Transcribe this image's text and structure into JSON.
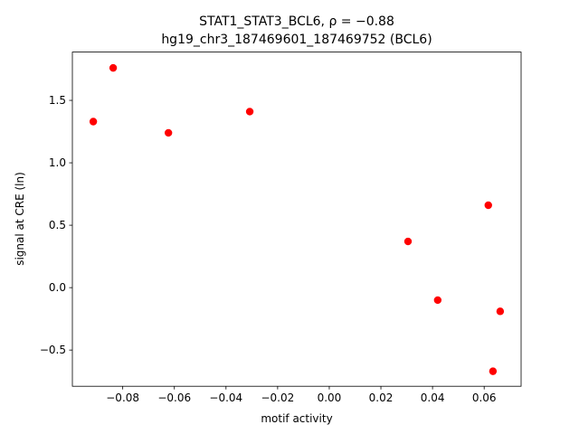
{
  "chart_data": {
    "type": "scatter",
    "title": "STAT1_STAT3_BCL6, ρ = −0.88",
    "subtitle": "hg19_chr3_187469601_187469752 (BCL6)",
    "x_label": "motif activity",
    "y_label": "signal at CRE (ln)",
    "color": "#ff0000",
    "x": [
      -0.0837,
      -0.0914,
      -0.0623,
      -0.0308,
      0.0305,
      0.0616,
      0.042,
      0.0662,
      0.0634
    ],
    "values": [
      1.76,
      1.33,
      1.24,
      1.41,
      0.37,
      0.66,
      -0.1,
      -0.19,
      -0.67
    ],
    "xlim": [
      -0.0995,
      0.0743
    ],
    "ylim": [
      -0.79,
      1.887
    ],
    "xticks": [
      {
        "value": -0.08,
        "label": "−0.08"
      },
      {
        "value": -0.06,
        "label": "−0.06"
      },
      {
        "value": -0.04,
        "label": "−0.04"
      },
      {
        "value": -0.02,
        "label": "−0.02"
      },
      {
        "value": 0,
        "label": "0.00"
      },
      {
        "value": 0.02,
        "label": "0.02"
      },
      {
        "value": 0.04,
        "label": "0.04"
      },
      {
        "value": 0.06,
        "label": "0.06"
      }
    ],
    "yticks": [
      {
        "value": -0.5,
        "label": "−0.5"
      },
      {
        "value": 0,
        "label": "0.0"
      },
      {
        "value": 0.5,
        "label": "0.5"
      },
      {
        "value": 1,
        "label": "1.0"
      },
      {
        "value": 1.5,
        "label": "1.5"
      }
    ],
    "grid": false
  }
}
